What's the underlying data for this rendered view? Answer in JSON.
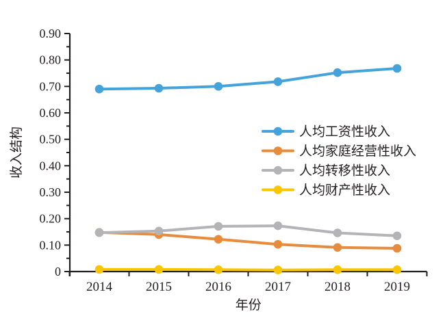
{
  "chart_data": {
    "type": "line",
    "title": "",
    "xlabel": "年份",
    "ylabel": "收入结构",
    "x": [
      "2014",
      "2015",
      "2016",
      "2017",
      "2018",
      "2019"
    ],
    "series": [
      {
        "key": "wage-income",
        "name": "人均工资性收入",
        "color": "#45a3db",
        "values": [
          0.69,
          0.693,
          0.7,
          0.718,
          0.752,
          0.768
        ]
      },
      {
        "key": "household-business-income",
        "name": "人均家庭经营性收入",
        "color": "#e78c3d",
        "values": [
          0.148,
          0.14,
          0.122,
          0.103,
          0.091,
          0.088
        ]
      },
      {
        "key": "transfer-income",
        "name": "人均转移性收入",
        "color": "#b4b4b7",
        "values": [
          0.147,
          0.153,
          0.171,
          0.173,
          0.146,
          0.135
        ]
      },
      {
        "key": "property-income",
        "name": "人均财产性收入",
        "color": "#f8c602",
        "values": [
          0.008,
          0.008,
          0.007,
          0.006,
          0.007,
          0.007
        ]
      }
    ],
    "ylim": [
      0,
      0.9
    ],
    "ytick_step": 0.1,
    "ytick_minor_step": 0.05,
    "ytick_labels": [
      "0",
      "0.10",
      "0.20",
      "0.30",
      "0.40",
      "0.50",
      "0.60",
      "0.70",
      "0.80",
      "0.90"
    ],
    "grid": false,
    "legend_position": "center-right-inside",
    "axis_color": "#231f20"
  }
}
